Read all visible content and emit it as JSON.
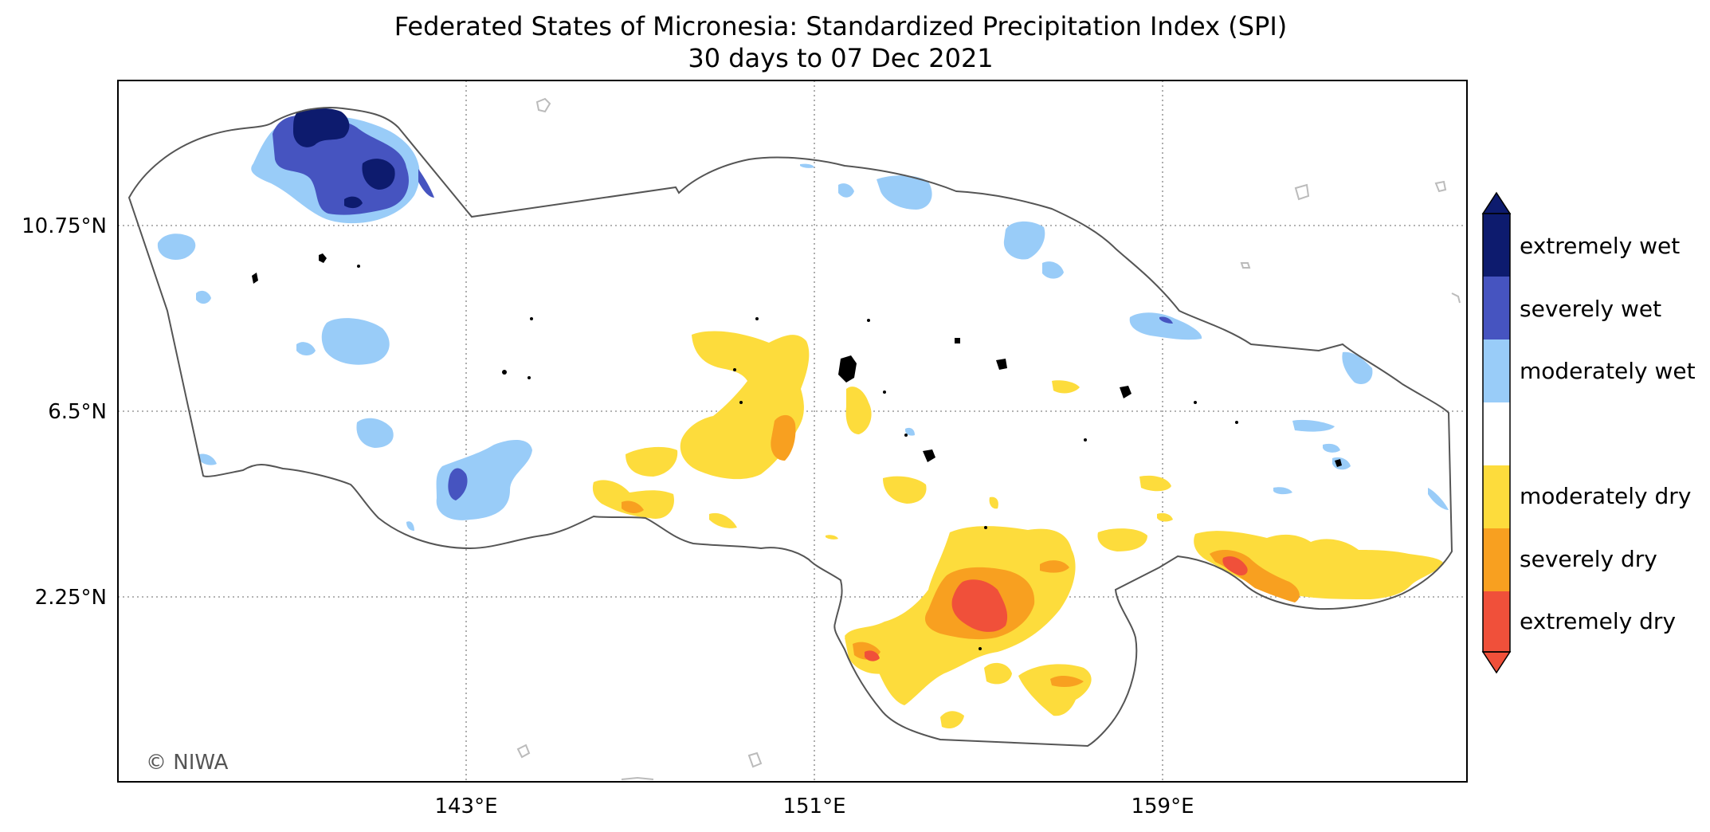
{
  "title": "Federated States of Micronesia: Standardized Precipitation Index (SPI)",
  "subtitle": "30 days to 07 Dec 2021",
  "axes": {
    "lat_labels": [
      "10.75°N",
      "6.5°N",
      "2.25°N"
    ],
    "lon_labels": [
      "143°E",
      "151°E",
      "159°E"
    ]
  },
  "legend": {
    "items": [
      {
        "label": "extremely wet",
        "color": "#0d1b6e"
      },
      {
        "label": "severely wet",
        "color": "#4654c0"
      },
      {
        "label": "moderately wet",
        "color": "#99ccf8"
      },
      {
        "label": "",
        "color": "#ffffff"
      },
      {
        "label": "moderately dry",
        "color": "#fddc3c"
      },
      {
        "label": "severely dry",
        "color": "#f8a020"
      },
      {
        "label": "extremely dry",
        "color": "#f0503a"
      }
    ]
  },
  "credit": "© NIWA"
}
